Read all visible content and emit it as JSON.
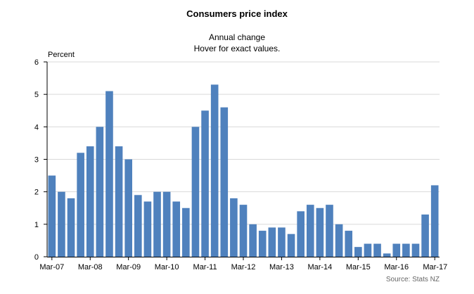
{
  "chart_data": {
    "type": "bar",
    "title": "Consumers price index",
    "subtitle_lines": [
      "Annual change",
      "Hover for exact values."
    ],
    "ylabel": "Percent",
    "xlabel": "",
    "ylim": [
      0,
      6
    ],
    "yticks": [
      0,
      1,
      2,
      3,
      4,
      5,
      6
    ],
    "grid": true,
    "legend": "none",
    "bar_color": "#4f81bd",
    "source": "Source: Stats NZ",
    "xtick_labels": [
      {
        "label": "Mar-07",
        "index": 0
      },
      {
        "label": "Mar-08",
        "index": 4
      },
      {
        "label": "Mar-09",
        "index": 8
      },
      {
        "label": "Mar-10",
        "index": 12
      },
      {
        "label": "Mar-11",
        "index": 16
      },
      {
        "label": "Mar-12",
        "index": 20
      },
      {
        "label": "Mar-13",
        "index": 24
      },
      {
        "label": "Mar-14",
        "index": 28
      },
      {
        "label": "Mar-15",
        "index": 32
      },
      {
        "label": "Mar-16",
        "index": 36
      },
      {
        "label": "Mar-17",
        "index": 40
      }
    ],
    "categories": [
      "Mar-07",
      "Jun-07",
      "Sep-07",
      "Dec-07",
      "Mar-08",
      "Jun-08",
      "Sep-08",
      "Dec-08",
      "Mar-09",
      "Jun-09",
      "Sep-09",
      "Dec-09",
      "Mar-10",
      "Jun-10",
      "Sep-10",
      "Dec-10",
      "Mar-11",
      "Jun-11",
      "Sep-11",
      "Dec-11",
      "Mar-12",
      "Jun-12",
      "Sep-12",
      "Dec-12",
      "Mar-13",
      "Jun-13",
      "Sep-13",
      "Dec-13",
      "Mar-14",
      "Jun-14",
      "Sep-14",
      "Dec-14",
      "Mar-15",
      "Jun-15",
      "Sep-15",
      "Dec-15",
      "Mar-16",
      "Jun-16",
      "Sep-16",
      "Dec-16",
      "Mar-17"
    ],
    "values": [
      2.5,
      2.0,
      1.8,
      3.2,
      3.4,
      4.0,
      5.1,
      3.4,
      3.0,
      1.9,
      1.7,
      2.0,
      2.0,
      1.7,
      1.5,
      4.0,
      4.5,
      5.3,
      4.6,
      1.8,
      1.6,
      1.0,
      0.8,
      0.9,
      0.9,
      0.7,
      1.4,
      1.6,
      1.5,
      1.6,
      1.0,
      0.8,
      0.3,
      0.4,
      0.4,
      0.1,
      0.4,
      0.4,
      0.4,
      1.3,
      2.2
    ]
  }
}
